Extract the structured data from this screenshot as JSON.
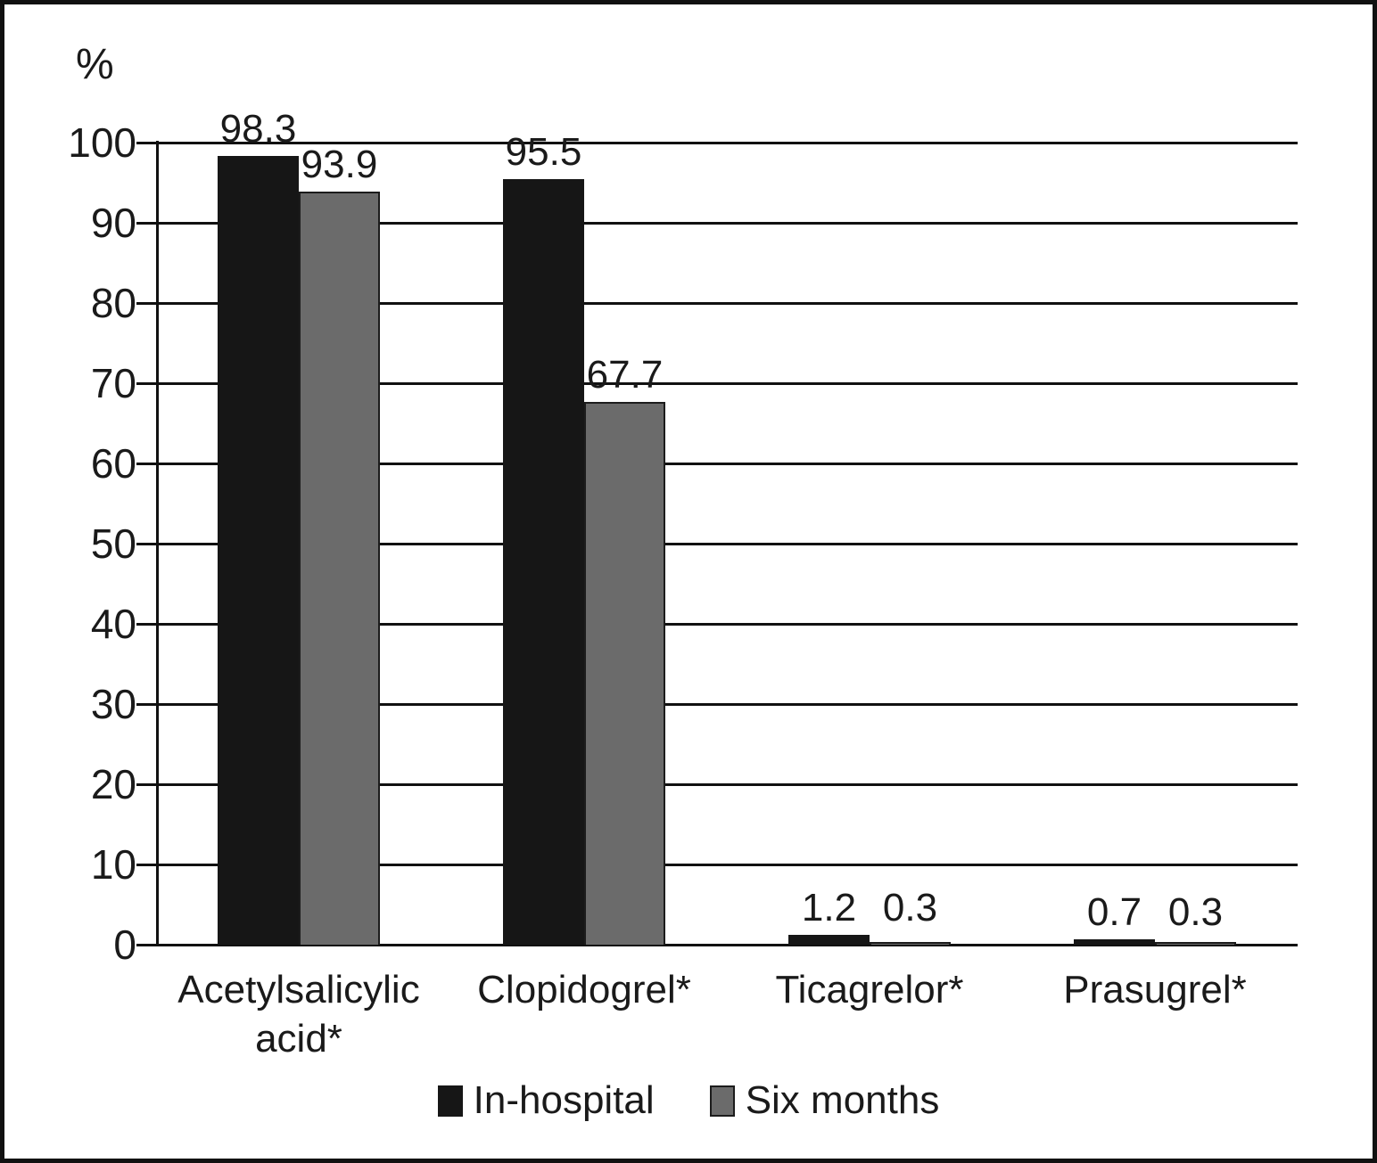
{
  "chart_data": {
    "type": "bar",
    "title": "",
    "ylabel": "%",
    "xlabel": "",
    "categories": [
      "Acetylsalicylic acid*",
      "Clopidogrel*",
      "Ticagrelor*",
      "Prasugrel*"
    ],
    "series": [
      {
        "name": "In-hospital",
        "color": "#161616",
        "values": [
          98.3,
          95.5,
          1.2,
          0.7
        ]
      },
      {
        "name": "Six months",
        "color": "#6b6b6b",
        "border_color": "#1c1c1c",
        "values": [
          93.9,
          67.7,
          0.3,
          0.3
        ]
      }
    ],
    "yticks": [
      0,
      10,
      20,
      30,
      40,
      50,
      60,
      70,
      80,
      90,
      100
    ],
    "ylim": [
      0,
      100
    ],
    "grid": true,
    "legend_position": "bottom",
    "colors": {
      "line": "#111111",
      "text": "#1a1a1a",
      "background": "#ffffff"
    }
  }
}
